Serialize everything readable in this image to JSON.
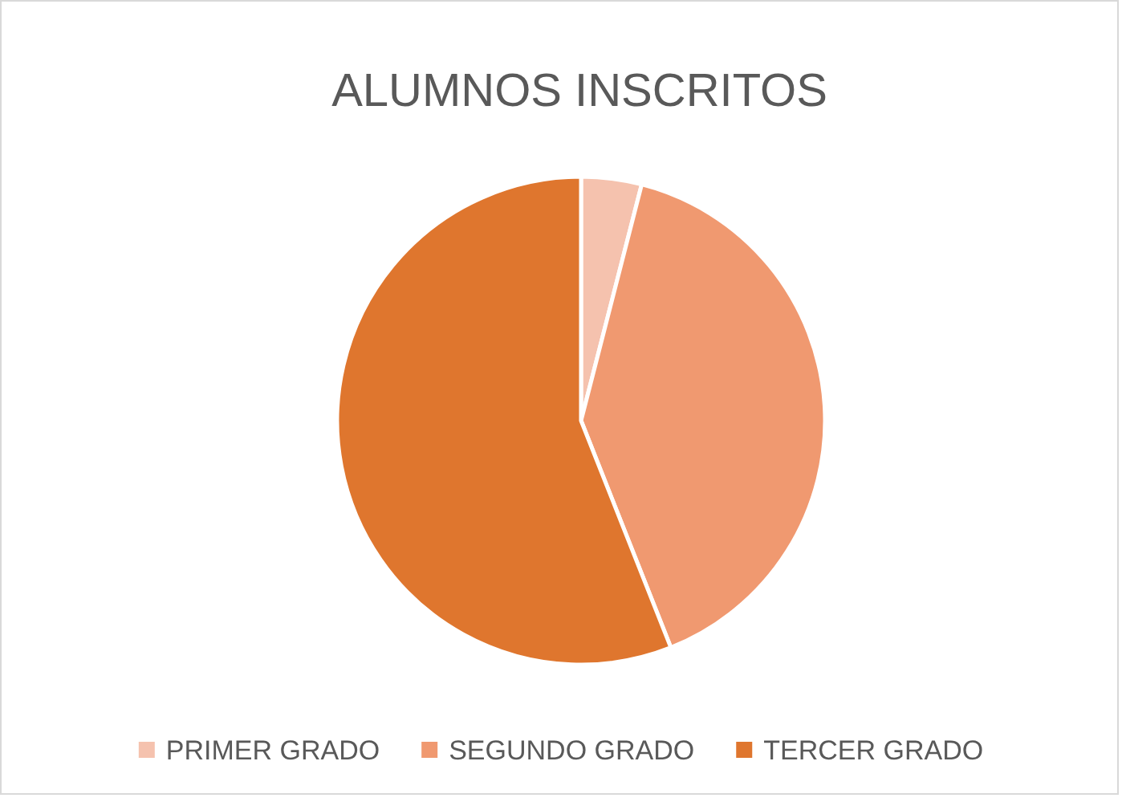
{
  "chart_data": {
    "type": "pie",
    "title": "ALUMNOS INSCRITOS",
    "categories": [
      "PRIMER GRADO",
      "SEGUNDO GRADO",
      "TERCER GRADO"
    ],
    "values": [
      4,
      40,
      56
    ],
    "colors": [
      "#f5c2ae",
      "#f09970",
      "#df762e"
    ],
    "legend": "bottom"
  }
}
